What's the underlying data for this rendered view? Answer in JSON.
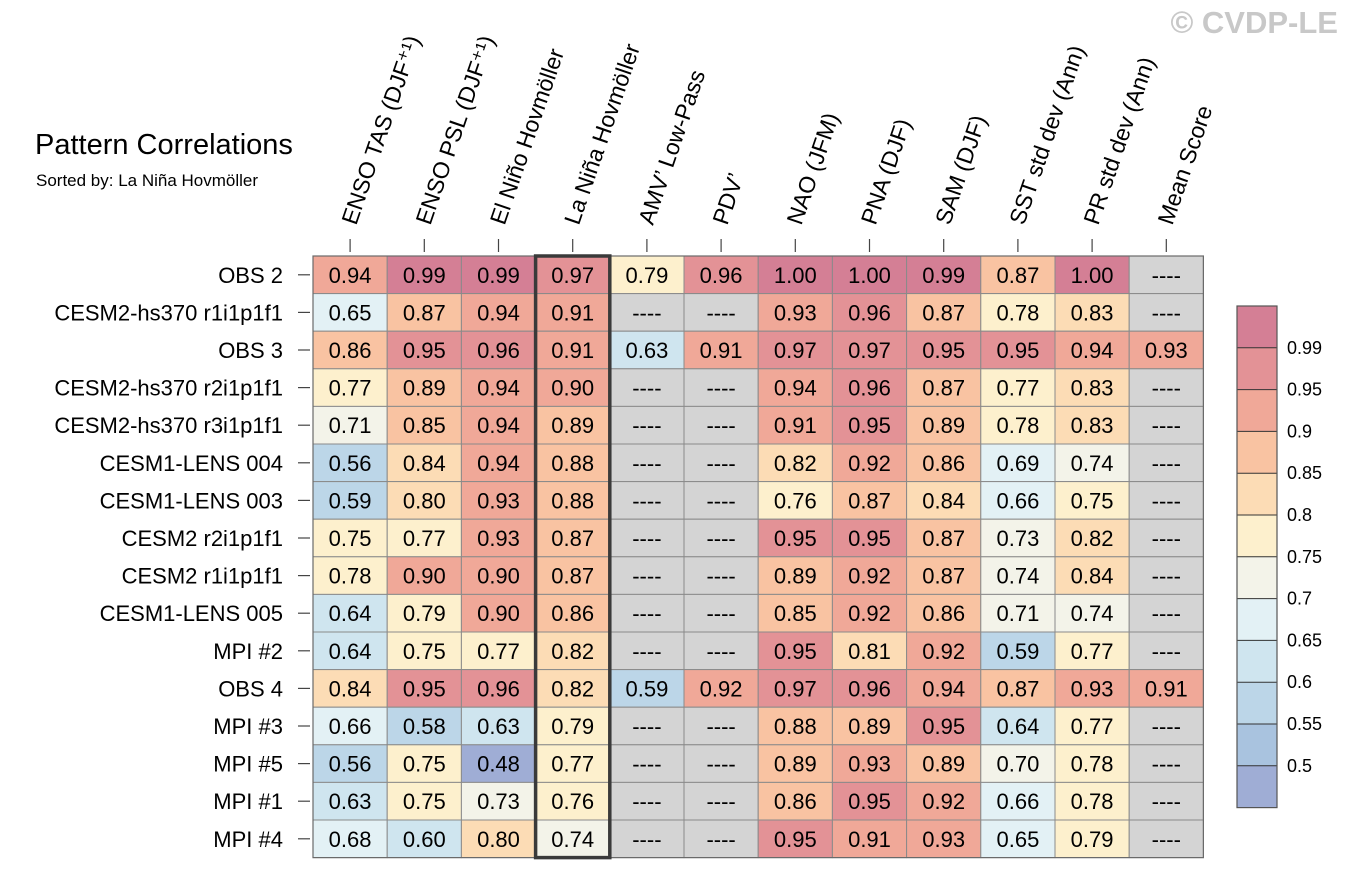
{
  "watermark": "© CVDP-LE",
  "chart_data": {
    "type": "heatmap",
    "title": "Pattern Correlations",
    "subtitle": "Sorted by: La Niña Hovmöller",
    "highlight_column": 3,
    "missing_label": "----",
    "columns": [
      "ENSO TAS (DJF⁺¹)",
      "ENSO PSL (DJF⁺¹)",
      "El Niño Hovmöller",
      "La Niña Hovmöller",
      "AMV’ Low-Pass",
      "PDV’",
      "NAO (JFM)",
      "PNA (DJF)",
      "SAM (DJF)",
      "SST std dev (Ann)",
      "PR std dev (Ann)",
      "Mean Score"
    ],
    "rows": [
      {
        "name": "OBS 2",
        "values": [
          0.94,
          0.99,
          0.99,
          0.97,
          0.79,
          0.96,
          1.0,
          1.0,
          0.99,
          0.87,
          1.0,
          null
        ]
      },
      {
        "name": "CESM2-hs370 r1i1p1f1",
        "values": [
          0.65,
          0.87,
          0.94,
          0.91,
          null,
          null,
          0.93,
          0.96,
          0.87,
          0.78,
          0.83,
          null
        ]
      },
      {
        "name": "OBS 3",
        "values": [
          0.86,
          0.95,
          0.96,
          0.91,
          0.63,
          0.91,
          0.97,
          0.97,
          0.95,
          0.95,
          0.94,
          0.93
        ]
      },
      {
        "name": "CESM2-hs370 r2i1p1f1",
        "values": [
          0.77,
          0.89,
          0.94,
          0.9,
          null,
          null,
          0.94,
          0.96,
          0.87,
          0.77,
          0.83,
          null
        ]
      },
      {
        "name": "CESM2-hs370 r3i1p1f1",
        "values": [
          0.71,
          0.85,
          0.94,
          0.89,
          null,
          null,
          0.91,
          0.95,
          0.89,
          0.78,
          0.83,
          null
        ]
      },
      {
        "name": "CESM1-LENS 004",
        "values": [
          0.56,
          0.84,
          0.94,
          0.88,
          null,
          null,
          0.82,
          0.92,
          0.86,
          0.69,
          0.74,
          null
        ]
      },
      {
        "name": "CESM1-LENS 003",
        "values": [
          0.59,
          0.8,
          0.93,
          0.88,
          null,
          null,
          0.76,
          0.87,
          0.84,
          0.66,
          0.75,
          null
        ]
      },
      {
        "name": "CESM2 r2i1p1f1",
        "values": [
          0.75,
          0.77,
          0.93,
          0.87,
          null,
          null,
          0.95,
          0.95,
          0.87,
          0.73,
          0.82,
          null
        ]
      },
      {
        "name": "CESM2 r1i1p1f1",
        "values": [
          0.78,
          0.9,
          0.9,
          0.87,
          null,
          null,
          0.89,
          0.92,
          0.87,
          0.74,
          0.84,
          null
        ]
      },
      {
        "name": "CESM1-LENS 005",
        "values": [
          0.64,
          0.79,
          0.9,
          0.86,
          null,
          null,
          0.85,
          0.92,
          0.86,
          0.71,
          0.74,
          null
        ]
      },
      {
        "name": "MPI #2",
        "values": [
          0.64,
          0.75,
          0.77,
          0.82,
          null,
          null,
          0.95,
          0.81,
          0.92,
          0.59,
          0.77,
          null
        ]
      },
      {
        "name": "OBS 4",
        "values": [
          0.84,
          0.95,
          0.96,
          0.82,
          0.59,
          0.92,
          0.97,
          0.96,
          0.94,
          0.87,
          0.93,
          0.91
        ]
      },
      {
        "name": "MPI #3",
        "values": [
          0.66,
          0.58,
          0.63,
          0.79,
          null,
          null,
          0.88,
          0.89,
          0.95,
          0.64,
          0.77,
          null
        ]
      },
      {
        "name": "MPI #5",
        "values": [
          0.56,
          0.75,
          0.48,
          0.77,
          null,
          null,
          0.89,
          0.93,
          0.89,
          0.7,
          0.78,
          null
        ]
      },
      {
        "name": "MPI #1",
        "values": [
          0.63,
          0.75,
          0.73,
          0.76,
          null,
          null,
          0.86,
          0.95,
          0.92,
          0.66,
          0.78,
          null
        ]
      },
      {
        "name": "MPI #4",
        "values": [
          0.68,
          0.6,
          0.8,
          0.74,
          null,
          null,
          0.95,
          0.91,
          0.93,
          0.65,
          0.79,
          null
        ]
      }
    ],
    "colorbar": {
      "ticks": [
        "0.99",
        "0.95",
        "0.9",
        "0.85",
        "0.8",
        "0.75",
        "0.7",
        "0.65",
        "0.6",
        "0.55",
        "0.5"
      ],
      "bins": [
        {
          "min": 0.99,
          "color": "#d47f95"
        },
        {
          "min": 0.95,
          "color": "#e39296"
        },
        {
          "min": 0.9,
          "color": "#f0a898"
        },
        {
          "min": 0.85,
          "color": "#f9c3a2"
        },
        {
          "min": 0.8,
          "color": "#fcdcb5"
        },
        {
          "min": 0.75,
          "color": "#fdf0cd"
        },
        {
          "min": 0.7,
          "color": "#f3f3e9"
        },
        {
          "min": 0.65,
          "color": "#e3f1f5"
        },
        {
          "min": 0.6,
          "color": "#cfe5ef"
        },
        {
          "min": 0.55,
          "color": "#bcd6e8"
        },
        {
          "min": 0.5,
          "color": "#a9c3df"
        },
        {
          "min": 0.0,
          "color": "#9fadd5"
        }
      ],
      "missing_color": "#d4d4d4",
      "highlight_box_color": "#3a3a3a"
    }
  }
}
